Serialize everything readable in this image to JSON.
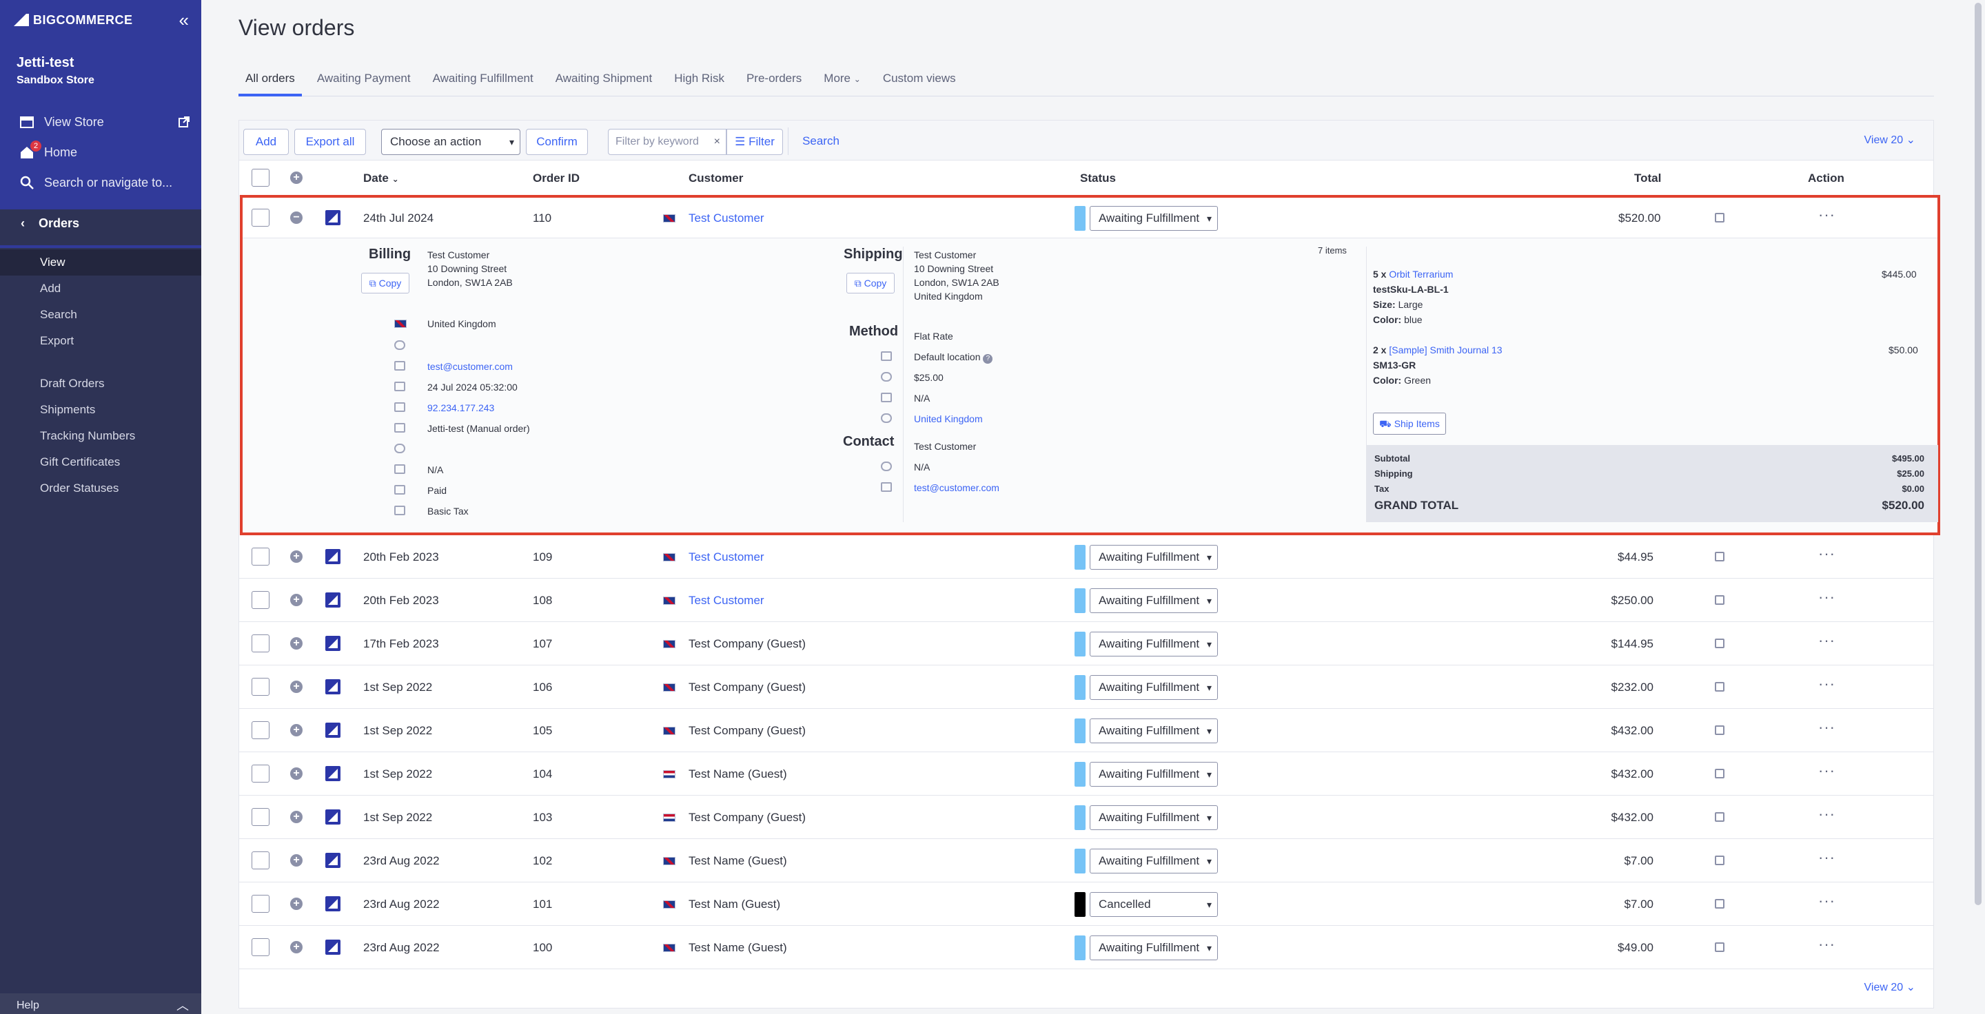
{
  "sidebar": {
    "logo": "BIGCOMMERCE",
    "store_name": "Jetti-test",
    "store_sub": "Sandbox Store",
    "view_store": "View Store",
    "home": "Home",
    "home_badge": "2",
    "search": "Search or navigate to...",
    "section": "Orders",
    "items": [
      {
        "label": "View"
      },
      {
        "label": "Add"
      },
      {
        "label": "Search"
      },
      {
        "label": "Export"
      },
      {
        "label": "Draft Orders"
      },
      {
        "label": "Shipments"
      },
      {
        "label": "Tracking Numbers"
      },
      {
        "label": "Gift Certificates"
      },
      {
        "label": "Order Statuses"
      }
    ],
    "help": "Help"
  },
  "page": {
    "title": "View orders",
    "tabs": [
      {
        "label": "All orders"
      },
      {
        "label": "Awaiting Payment"
      },
      {
        "label": "Awaiting Fulfillment"
      },
      {
        "label": "Awaiting Shipment"
      },
      {
        "label": "High Risk"
      },
      {
        "label": "Pre-orders"
      },
      {
        "label": "More"
      },
      {
        "label": "Custom views"
      }
    ]
  },
  "toolbar": {
    "add": "Add",
    "export_all": "Export all",
    "action_select": "Choose an action",
    "confirm": "Confirm",
    "filter_placeholder": "Filter by keyword",
    "filter": "Filter",
    "search": "Search",
    "view_count": "View 20"
  },
  "table": {
    "headers": {
      "date": "Date",
      "order_id": "Order ID",
      "customer": "Customer",
      "status": "Status",
      "total": "Total",
      "action": "Action"
    },
    "expanded": {
      "date": "24th Jul 2024",
      "order_id": "110",
      "customer": "Test Customer",
      "status": "Awaiting Fulfillment",
      "total": "$520.00"
    },
    "rows": [
      {
        "date": "20th Feb 2023",
        "order_id": "109",
        "customer": "Test Customer",
        "status": "Awaiting Fulfillment",
        "total": "$44.95"
      },
      {
        "date": "20th Feb 2023",
        "order_id": "108",
        "customer": "Test Customer",
        "status": "Awaiting Fulfillment",
        "total": "$250.00"
      },
      {
        "date": "17th Feb 2023",
        "order_id": "107",
        "customer": "Test Company (Guest)",
        "status": "Awaiting Fulfillment",
        "total": "$144.95"
      },
      {
        "date": "1st Sep 2022",
        "order_id": "106",
        "customer": "Test Company (Guest)",
        "status": "Awaiting Fulfillment",
        "total": "$232.00"
      },
      {
        "date": "1st Sep 2022",
        "order_id": "105",
        "customer": "Test Company (Guest)",
        "status": "Awaiting Fulfillment",
        "total": "$432.00"
      },
      {
        "date": "1st Sep 2022",
        "order_id": "104",
        "customer": "Test Name (Guest)",
        "status": "Awaiting Fulfillment",
        "total": "$432.00"
      },
      {
        "date": "1st Sep 2022",
        "order_id": "103",
        "customer": "Test Company (Guest)",
        "status": "Awaiting Fulfillment",
        "total": "$432.00"
      },
      {
        "date": "23rd Aug 2022",
        "order_id": "102",
        "customer": "Test Name (Guest)",
        "status": "Awaiting Fulfillment",
        "total": "$7.00"
      },
      {
        "date": "23rd Aug 2022",
        "order_id": "101",
        "customer": "Test Nam (Guest)",
        "status": "Cancelled",
        "total": "$7.00"
      },
      {
        "date": "23rd Aug 2022",
        "order_id": "100",
        "customer": "Test Name (Guest)",
        "status": "Awaiting Fulfillment",
        "total": "$49.00"
      }
    ]
  },
  "detail": {
    "billing_title": "Billing",
    "copy": "Copy",
    "billing_name": "Test Customer",
    "billing_street": "10 Downing Street",
    "billing_city": "London, SW1A 2AB",
    "billing_country": "United Kingdom",
    "billing_email": "test@customer.com",
    "billing_date": "24 Jul 2024 05:32:00",
    "billing_ip": "92.234.177.243",
    "billing_source": "Jetti-test (Manual order)",
    "billing_payment": "N/A",
    "billing_paid": "Paid",
    "billing_tax": "Basic Tax",
    "shipping_title": "Shipping",
    "shipping_name": "Test Customer",
    "shipping_street": "10 Downing Street",
    "shipping_city": "London, SW1A 2AB",
    "shipping_country": "United Kingdom",
    "method_title": "Method",
    "method_name": "Flat Rate",
    "method_location": "Default location",
    "method_cost": "$25.00",
    "method_date": "N/A",
    "method_country": "United Kingdom",
    "contact_title": "Contact",
    "contact_name": "Test Customer",
    "contact_phone": "N/A",
    "contact_email": "test@customer.com",
    "item_count": "7 items",
    "item1_qty": "5 x",
    "item1_name": "Orbit Terrarium",
    "item1_price": "$445.00",
    "item1_sku": "testSku-LA-BL-1",
    "item1_size_label": "Size:",
    "item1_size": "Large",
    "item1_color_label": "Color:",
    "item1_color": "blue",
    "item2_qty": "2 x",
    "item2_name": "[Sample] Smith Journal 13",
    "item2_price": "$50.00",
    "item2_sku": "SM13-GR",
    "item2_color_label": "Color:",
    "item2_color": "Green",
    "ship_items": "Ship Items",
    "subtotal_label": "Subtotal",
    "subtotal": "$495.00",
    "shipping_label": "Shipping",
    "shipping": "$25.00",
    "tax_label": "Tax",
    "tax": "$0.00",
    "grand_total_label": "GRAND TOTAL",
    "grand_total": "$520.00"
  },
  "colors": {
    "accent": "#3c64f4",
    "sidebar": "#2e3355",
    "sidebar_top": "#313a9a",
    "highlight_border": "#e0402e",
    "status_awaiting": "#76c3f6",
    "status_cancelled": "#000000"
  }
}
